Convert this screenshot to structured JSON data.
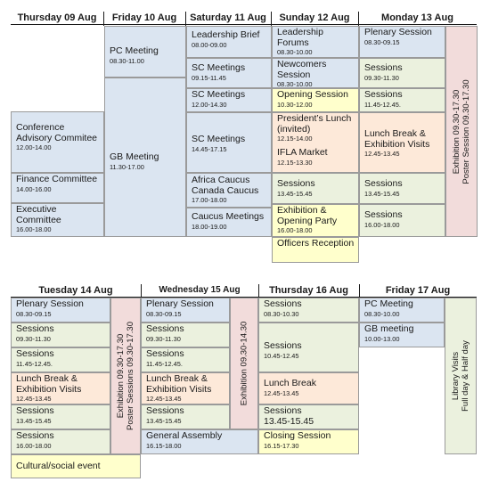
{
  "week1": {
    "headers": [
      "Thursday 09 Aug",
      "Friday 10 Aug",
      "Saturday 11 Aug",
      "Sunday 12 Aug",
      "Monday 13 Aug"
    ],
    "thu": [
      {
        "title": "Conference Advisory Commitee",
        "time": "12.00-14.00"
      },
      {
        "title": "Finance Committee",
        "time": "14.00-16.00"
      },
      {
        "title": "Executive Committee",
        "time": "16.00-18.00"
      }
    ],
    "fri": [
      {
        "title": "PC Meeting",
        "time": "08.30-11.00"
      },
      {
        "title": "GB Meeting",
        "time": "11.30-17.00"
      }
    ],
    "sat": [
      {
        "title": "Leadership Brief",
        "time": "08.00-09.00"
      },
      {
        "title": "SC Meetings",
        "time": "09.15-11.45"
      },
      {
        "title": "SC Meetings",
        "time": "12.00-14.30"
      },
      {
        "title": "SC Meetings",
        "time": "14.45-17.15"
      },
      {
        "title": "Africa Caucus Canada Caucus",
        "time": "17.00-18.00"
      },
      {
        "title": "Caucus Meetings",
        "time": "18.00-19.00"
      }
    ],
    "sun": [
      {
        "title": "Leadership Forums",
        "time": "08.30-10.00"
      },
      {
        "title": "Newcomers Session",
        "time": "08.30-10.00"
      },
      {
        "title": "Opening Session",
        "time": "10.30-12.00"
      },
      {
        "title": "President’s Lunch (invited)",
        "time": "12.15-14.00",
        "title2": "IFLA Market",
        "time2": "12.15-13.30"
      },
      {
        "title": "Sessions",
        "time": "13.45-15.45"
      },
      {
        "title": "Exhibition & Opening Party",
        "time": "16.00-18.00"
      },
      {
        "title": "Officers Reception",
        "time": ""
      }
    ],
    "mon": [
      {
        "title": "Plenary Session",
        "time": "08.30-09.15"
      },
      {
        "title": "Sessions",
        "time": "09.30-11.30"
      },
      {
        "title": "Sessions",
        "time": "11.45-12.45."
      },
      {
        "title": "Lunch Break & Exhibition Visits",
        "time": "12.45-13.45"
      },
      {
        "title": "Sessions",
        "time": "13.45-15.45"
      },
      {
        "title": "Sessions",
        "time": "16.00-18.00"
      }
    ],
    "mon_vertical": [
      "Exhibition 09.30-17.30",
      "Poster Session 09.30-17.30"
    ]
  },
  "week2": {
    "headers": [
      "Tuesday 14 Aug",
      "Wednesday  15 Aug",
      "Thursday 16 Aug",
      "Friday 17 Aug"
    ],
    "tue": [
      {
        "title": "Plenary Session",
        "time": "08.30-09.15"
      },
      {
        "title": "Sessions",
        "time": "09.30-11.30"
      },
      {
        "title": "Sessions",
        "time": "11.45-12.45."
      },
      {
        "title": "Lunch Break & Exhibition Visits",
        "time": "12.45-13.45"
      },
      {
        "title": "Sessions",
        "time": "13.45-15.45"
      },
      {
        "title": "Sessions",
        "time": "16.00-18.00"
      },
      {
        "title": "Cultural/social event",
        "time": ""
      }
    ],
    "tue_vertical": [
      "Exhibition 09.30-17.30",
      "Poster Sessions 09.30-17.30"
    ],
    "wed": [
      {
        "title": "Plenary Session",
        "time": "08.30-09.15"
      },
      {
        "title": "Sessions",
        "time": "09.30-11.30"
      },
      {
        "title": "Sessions",
        "time": "11.45-12.45."
      },
      {
        "title": "Lunch Break & Exhibition Visits",
        "time": "12.45-13.45"
      },
      {
        "title": "Sessions",
        "time": "13.45-15.45"
      },
      {
        "title": "General Assembly",
        "time": "16.15-18.00"
      }
    ],
    "wed_vertical": [
      "Exhibition 09.30-14.30"
    ],
    "thu": [
      {
        "title": "Sessions",
        "time": "08.30-10.30"
      },
      {
        "title": "Sessions",
        "time": "10.45-12.45"
      },
      {
        "title": "Lunch Break",
        "time": "12.45-13.45"
      },
      {
        "title": "Sessions",
        "time": "13.45-15.45"
      },
      {
        "title": "Closing Session",
        "time": "16.15-17.30"
      }
    ],
    "fri": [
      {
        "title": "PC Meeting",
        "time": "08.30-10.00"
      },
      {
        "title": "GB meeting",
        "time": "10.00-13.00"
      }
    ],
    "fri_vertical": [
      "Library Visits",
      "Full day & Half day"
    ]
  }
}
